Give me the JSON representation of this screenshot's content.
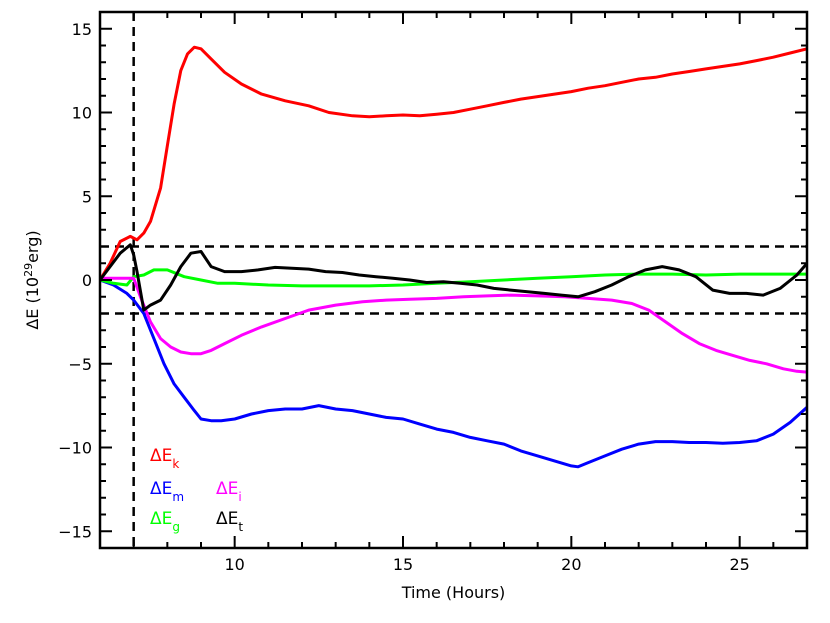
{
  "chart_data": {
    "type": "line",
    "xlabel": "Time (Hours)",
    "ylabel": {
      "prefix": "ΔE (10",
      "sup": "29",
      "suffix": "erg)"
    },
    "xlim": [
      6.0,
      27.0
    ],
    "ylim": [
      -16.0,
      16.0
    ],
    "xticks": [
      10,
      15,
      20,
      25
    ],
    "yticks": [
      -15,
      -10,
      -5,
      0,
      5,
      10,
      15
    ],
    "ytick_labels": [
      "−15",
      "−10",
      "−5",
      "0",
      "5",
      "10",
      "15"
    ],
    "grid": false,
    "vlines": [
      {
        "x": 7.0,
        "style": "dashed"
      }
    ],
    "hlines": [
      {
        "y": 2.0,
        "style": "dashed"
      },
      {
        "y": -2.0,
        "style": "dashed"
      }
    ],
    "series": [
      {
        "name": "ΔE_k",
        "label_base": "ΔE",
        "label_sub": "k",
        "color": "#ff0000",
        "x": [
          6.0,
          6.3,
          6.6,
          6.9,
          7.1,
          7.3,
          7.5,
          7.8,
          8.0,
          8.2,
          8.4,
          8.6,
          8.8,
          9.0,
          9.3,
          9.7,
          10.2,
          10.8,
          11.5,
          12.2,
          12.8,
          13.5,
          14.0,
          14.5,
          15.0,
          15.5,
          16.0,
          16.5,
          17.0,
          17.5,
          18.0,
          18.5,
          19.0,
          19.5,
          20.0,
          20.5,
          21.0,
          21.5,
          22.0,
          22.5,
          23.0,
          23.5,
          24.0,
          24.5,
          25.0,
          25.5,
          26.0,
          26.5,
          27.0
        ],
        "y": [
          0.0,
          1.0,
          2.3,
          2.6,
          2.4,
          2.8,
          3.5,
          5.5,
          8.0,
          10.5,
          12.5,
          13.5,
          13.9,
          13.8,
          13.2,
          12.4,
          11.7,
          11.1,
          10.7,
          10.4,
          10.0,
          9.8,
          9.75,
          9.8,
          9.85,
          9.8,
          9.9,
          10.0,
          10.2,
          10.4,
          10.6,
          10.8,
          10.95,
          11.1,
          11.25,
          11.45,
          11.6,
          11.8,
          12.0,
          12.1,
          12.3,
          12.45,
          12.6,
          12.75,
          12.9,
          13.1,
          13.3,
          13.55,
          13.8
        ]
      },
      {
        "name": "ΔE_m",
        "label_base": "ΔE",
        "label_sub": "m",
        "color": "#0000ff",
        "x": [
          6.0,
          6.4,
          6.8,
          7.0,
          7.3,
          7.6,
          7.9,
          8.2,
          8.5,
          8.8,
          9.0,
          9.3,
          9.6,
          10.0,
          10.5,
          11.0,
          11.5,
          12.0,
          12.5,
          13.0,
          13.5,
          14.0,
          14.5,
          15.0,
          15.5,
          16.0,
          16.5,
          17.0,
          17.5,
          18.0,
          18.5,
          19.0,
          19.5,
          20.0,
          20.2,
          20.5,
          21.0,
          21.5,
          22.0,
          22.5,
          23.0,
          23.5,
          24.0,
          24.5,
          25.0,
          25.5,
          26.0,
          26.5,
          27.0
        ],
        "y": [
          0.0,
          -0.3,
          -0.8,
          -1.2,
          -2.0,
          -3.5,
          -5.0,
          -6.2,
          -7.0,
          -7.8,
          -8.3,
          -8.4,
          -8.4,
          -8.3,
          -8.0,
          -7.8,
          -7.7,
          -7.7,
          -7.5,
          -7.7,
          -7.8,
          -8.0,
          -8.2,
          -8.3,
          -8.6,
          -8.9,
          -9.1,
          -9.4,
          -9.6,
          -9.8,
          -10.2,
          -10.5,
          -10.8,
          -11.1,
          -11.15,
          -10.9,
          -10.5,
          -10.1,
          -9.8,
          -9.65,
          -9.65,
          -9.7,
          -9.7,
          -9.75,
          -9.7,
          -9.6,
          -9.2,
          -8.5,
          -7.6
        ]
      },
      {
        "name": "ΔE_g",
        "label_base": "ΔE",
        "label_sub": "g",
        "color": "#00ff00",
        "x": [
          6.0,
          6.4,
          6.8,
          7.0,
          7.3,
          7.6,
          8.0,
          8.5,
          9.0,
          9.5,
          10.0,
          11.0,
          12.0,
          13.0,
          14.0,
          15.0,
          16.0,
          17.0,
          18.0,
          19.0,
          20.0,
          21.0,
          22.0,
          23.0,
          24.0,
          25.0,
          26.0,
          27.0
        ],
        "y": [
          0.0,
          -0.2,
          -0.3,
          0.2,
          0.3,
          0.6,
          0.6,
          0.2,
          0.0,
          -0.2,
          -0.2,
          -0.3,
          -0.35,
          -0.35,
          -0.35,
          -0.3,
          -0.2,
          -0.1,
          0.0,
          0.1,
          0.2,
          0.3,
          0.35,
          0.35,
          0.3,
          0.35,
          0.35,
          0.35
        ]
      },
      {
        "name": "ΔE_i",
        "label_base": "ΔE",
        "label_sub": "i",
        "color": "#ff00ff",
        "x": [
          6.0,
          6.5,
          7.0,
          7.2,
          7.5,
          7.8,
          8.1,
          8.4,
          8.7,
          9.0,
          9.3,
          9.7,
          10.2,
          10.8,
          11.5,
          12.2,
          13.0,
          13.8,
          14.5,
          15.2,
          16.0,
          16.8,
          17.5,
          18.2,
          19.0,
          19.8,
          20.5,
          21.2,
          21.8,
          22.3,
          22.8,
          23.3,
          23.8,
          24.3,
          24.8,
          25.3,
          25.8,
          26.3,
          26.7,
          27.0
        ],
        "y": [
          0.1,
          0.1,
          0.1,
          -1.0,
          -2.5,
          -3.5,
          -4.0,
          -4.3,
          -4.4,
          -4.4,
          -4.2,
          -3.8,
          -3.3,
          -2.8,
          -2.3,
          -1.8,
          -1.5,
          -1.3,
          -1.2,
          -1.15,
          -1.1,
          -1.0,
          -0.95,
          -0.9,
          -0.95,
          -1.0,
          -1.1,
          -1.2,
          -1.4,
          -1.8,
          -2.5,
          -3.2,
          -3.8,
          -4.2,
          -4.5,
          -4.8,
          -5.0,
          -5.3,
          -5.45,
          -5.5
        ]
      },
      {
        "name": "ΔE_t",
        "label_base": "ΔE",
        "label_sub": "t",
        "color": "#000000",
        "x": [
          6.0,
          6.3,
          6.6,
          6.9,
          7.0,
          7.1,
          7.3,
          7.5,
          7.8,
          8.1,
          8.4,
          8.7,
          9.0,
          9.3,
          9.7,
          10.2,
          10.7,
          11.2,
          11.7,
          12.2,
          12.7,
          13.2,
          13.7,
          14.2,
          14.7,
          15.2,
          15.7,
          16.2,
          16.7,
          17.2,
          17.7,
          18.2,
          18.7,
          19.2,
          19.7,
          20.2,
          20.7,
          21.2,
          21.7,
          22.2,
          22.7,
          23.2,
          23.7,
          24.2,
          24.7,
          25.2,
          25.7,
          26.2,
          26.7,
          27.0
        ],
        "y": [
          0.0,
          0.8,
          1.6,
          2.1,
          1.5,
          0.5,
          -1.8,
          -1.5,
          -1.2,
          -0.3,
          0.8,
          1.6,
          1.7,
          0.8,
          0.5,
          0.5,
          0.6,
          0.75,
          0.7,
          0.65,
          0.5,
          0.45,
          0.3,
          0.2,
          0.1,
          0.0,
          -0.15,
          -0.1,
          -0.2,
          -0.3,
          -0.5,
          -0.6,
          -0.7,
          -0.8,
          -0.9,
          -1.0,
          -0.7,
          -0.3,
          0.2,
          0.6,
          0.8,
          0.6,
          0.2,
          -0.6,
          -0.8,
          -0.8,
          -0.9,
          -0.5,
          0.3,
          1.0
        ]
      }
    ]
  }
}
